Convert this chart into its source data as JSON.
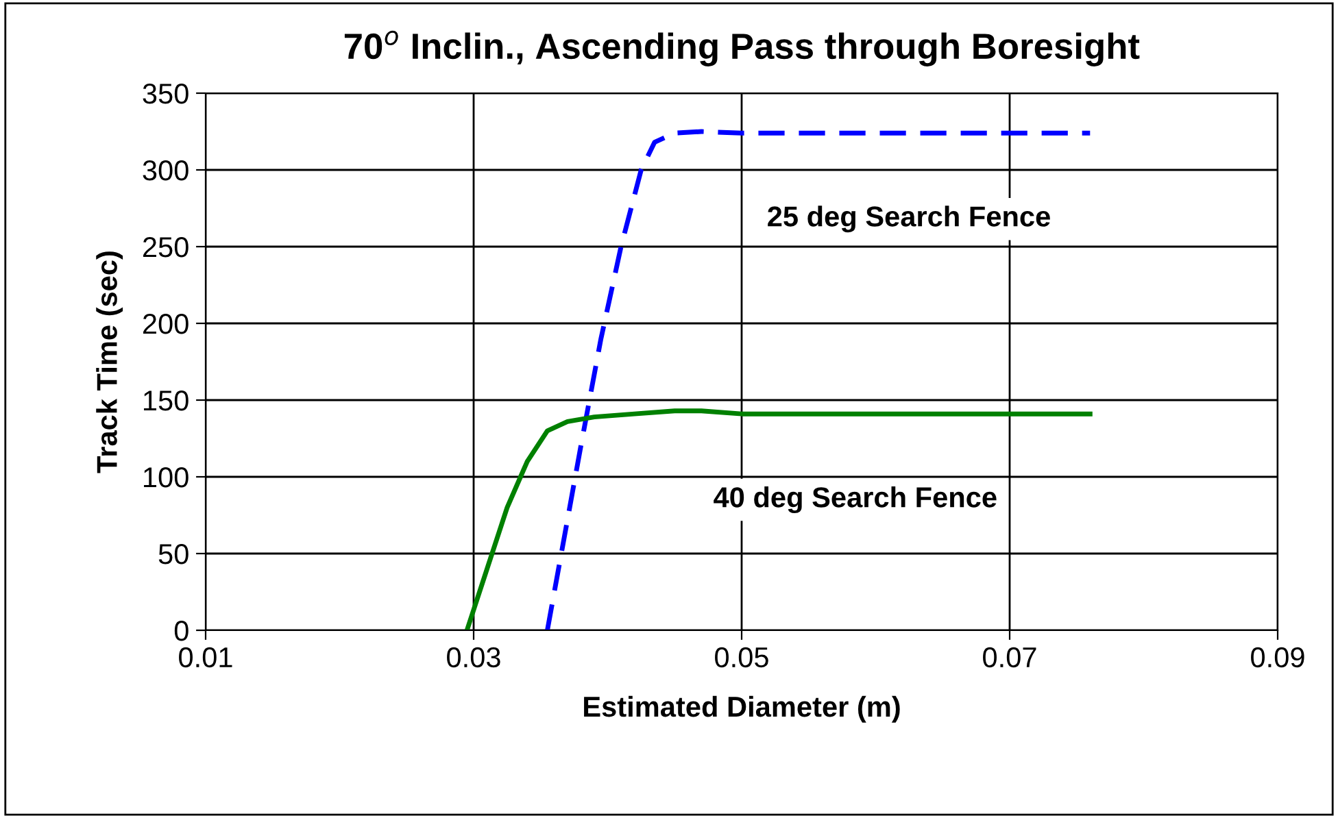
{
  "chart_data": {
    "type": "line",
    "title": "70$^{o}$ Inclin., Ascending Pass through Boresight",
    "xlabel": "Estimated Diameter (m)",
    "ylabel": "Track Time (sec)",
    "xlim": [
      0.01,
      0.09
    ],
    "xticks": [
      0.01,
      0.03,
      0.05,
      0.07,
      0.09
    ],
    "ylim": [
      0,
      350
    ],
    "yticks": [
      0,
      50,
      100,
      150,
      200,
      250,
      300,
      350
    ],
    "grid": true,
    "legend": false,
    "marker": "none",
    "series": [
      {
        "name": "25 deg Search Fence",
        "color": "#0000ff",
        "line_style": "dashed",
        "x": [
          0.0355,
          0.038,
          0.0395,
          0.041,
          0.0425,
          0.0435,
          0.045,
          0.047,
          0.05,
          0.06,
          0.07,
          0.076
        ],
        "values": [
          0,
          120,
          190,
          250,
          300,
          318,
          324,
          325,
          324,
          324,
          324,
          324
        ]
      },
      {
        "name": "40 deg Search Fence",
        "color": "#008000",
        "line_style": "solid",
        "x": [
          0.0295,
          0.031,
          0.0325,
          0.034,
          0.0355,
          0.037,
          0.039,
          0.042,
          0.045,
          0.047,
          0.05,
          0.06,
          0.07,
          0.076
        ],
        "values": [
          0,
          40,
          80,
          110,
          130,
          136,
          139,
          141,
          143,
          143,
          141,
          141,
          141,
          141
        ]
      }
    ]
  }
}
